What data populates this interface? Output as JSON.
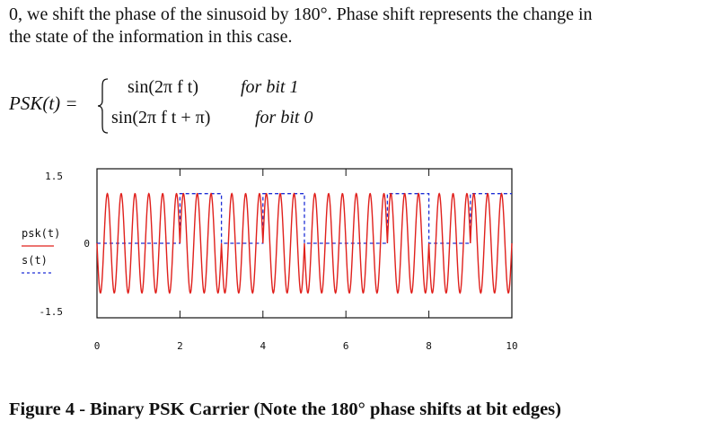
{
  "paragraph": {
    "line1": "0, we shift the phase of the sinusoid by 180°. Phase shift represents the change in",
    "line2": "the state of the information in this case."
  },
  "equation": {
    "lhs": "PSK(t) =",
    "case1_expr": "sin(2π f t)",
    "case1_cond": "for bit 1",
    "case2_expr": "sin(2π f t + π)",
    "case2_cond": "for bit 0"
  },
  "chart_data": {
    "type": "line",
    "x_ticks": [
      "0",
      "2",
      "4",
      "6",
      "8",
      "10"
    ],
    "y_ticks": [
      "1.5",
      "0",
      "-1.5"
    ],
    "xlim": [
      0,
      10
    ],
    "ylim": [
      -1.5,
      1.5
    ],
    "legend": [
      {
        "label": "psk(t)",
        "color": "#e0201c",
        "style": "solid"
      },
      {
        "label": "s(t)",
        "color": "#1f2fd6",
        "style": "dashed"
      }
    ],
    "legend_position": "left",
    "carrier_frequency": 3,
    "bits": [
      0,
      0,
      1,
      0,
      1,
      0,
      0,
      1,
      0,
      1
    ],
    "series": [
      {
        "name": "psk(t)",
        "color": "#e0201c",
        "amplitude": 1
      },
      {
        "name": "s(t)",
        "color": "#1f2fd6",
        "levels": [
          0,
          1
        ]
      }
    ]
  },
  "caption": "Figure 4 - Binary PSK Carrier (Note the 180° phase shifts at bit edges)"
}
